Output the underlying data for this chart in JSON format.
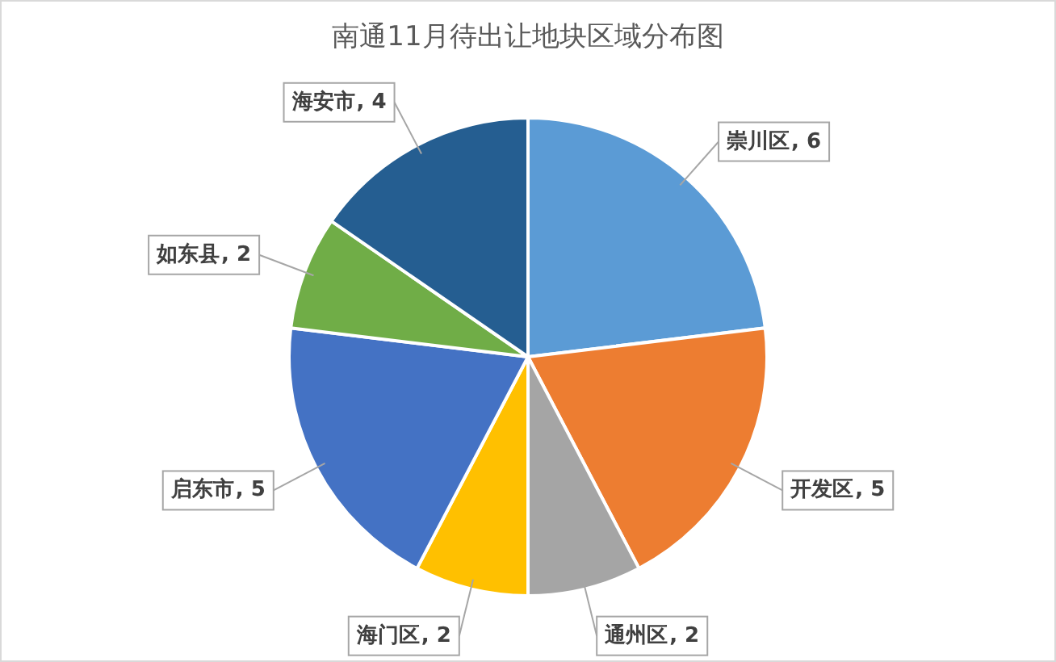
{
  "chart_data": {
    "type": "pie",
    "title": "南通11月待出让地块区域分布图",
    "categories": [
      "崇川区",
      "开发区",
      "通州区",
      "海门区",
      "启东市",
      "如东县",
      "海安市"
    ],
    "values": [
      6,
      5,
      2,
      2,
      5,
      2,
      4
    ],
    "colors": [
      "#5b9bd5",
      "#ed7d31",
      "#a5a5a5",
      "#ffc000",
      "#4472c4",
      "#70ad47",
      "#255e91"
    ],
    "value_labels": [
      ", 6",
      ", 5",
      ", 2",
      ", 2",
      ", 5",
      ", 2",
      ", 4"
    ]
  }
}
